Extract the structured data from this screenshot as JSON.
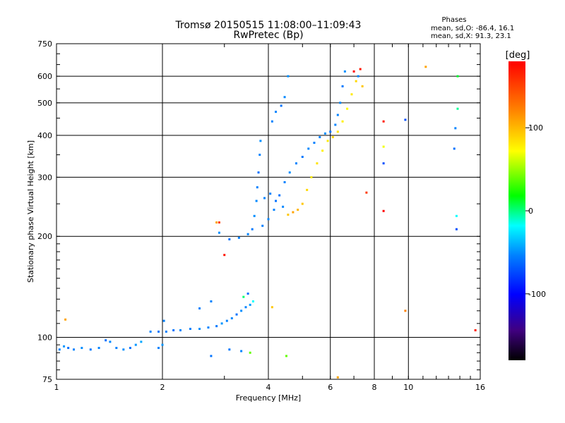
{
  "chart_data": {
    "type": "scatter",
    "title": "Tromsø 20150515 11:08:00–11:09:43",
    "subtitle": "RwPretec (Bp)",
    "xlabel": "Frequency [MHz]",
    "ylabel": "Stationary phase Virtual Height [km]",
    "xscale": "log",
    "yscale": "log",
    "xlim": [
      1,
      16
    ],
    "ylim": [
      75,
      750
    ],
    "x_ticks": [
      1,
      2,
      4,
      6,
      8,
      10,
      16
    ],
    "x_tick_labels": [
      "1",
      "2",
      "4",
      "6",
      "8",
      "10",
      "16"
    ],
    "y_ticks": [
      75,
      100,
      200,
      300,
      400,
      500,
      600,
      750
    ],
    "y_tick_labels": [
      "75",
      "100",
      "200",
      "300",
      "400",
      "500",
      "600",
      "750"
    ],
    "grid": true,
    "stats": {
      "header": "Phases",
      "o_line": "mean, sd,O: -86.4, 16.1",
      "x_line": "mean, sd,X: 91.3, 23.1"
    },
    "colorbar": {
      "label": "[deg]",
      "ticks": [
        100,
        0,
        -100
      ],
      "tick_labels": [
        "100",
        "0",
        "-100"
      ],
      "range": [
        -180,
        180
      ]
    },
    "points": [
      {
        "x": 1.02,
        "y": 92,
        "phase": -95
      },
      {
        "x": 1.05,
        "y": 94,
        "phase": -90
      },
      {
        "x": 1.08,
        "y": 93,
        "phase": -100
      },
      {
        "x": 1.12,
        "y": 92,
        "phase": -95
      },
      {
        "x": 1.18,
        "y": 93,
        "phase": -92
      },
      {
        "x": 1.25,
        "y": 92,
        "phase": -98
      },
      {
        "x": 1.32,
        "y": 93,
        "phase": -95
      },
      {
        "x": 1.38,
        "y": 98,
        "phase": -100
      },
      {
        "x": 1.42,
        "y": 97,
        "phase": -94
      },
      {
        "x": 1.48,
        "y": 93,
        "phase": -96
      },
      {
        "x": 1.55,
        "y": 92,
        "phase": -92
      },
      {
        "x": 1.62,
        "y": 93,
        "phase": -100
      },
      {
        "x": 1.68,
        "y": 95,
        "phase": -90
      },
      {
        "x": 1.74,
        "y": 97,
        "phase": -85
      },
      {
        "x": 1.06,
        "y": 113,
        "phase": 110
      },
      {
        "x": 1.85,
        "y": 104,
        "phase": -95
      },
      {
        "x": 1.95,
        "y": 104,
        "phase": -98
      },
      {
        "x": 2.05,
        "y": 104,
        "phase": -96
      },
      {
        "x": 2.15,
        "y": 105,
        "phase": -100
      },
      {
        "x": 2.25,
        "y": 105,
        "phase": -94
      },
      {
        "x": 2.4,
        "y": 106,
        "phase": -96
      },
      {
        "x": 2.55,
        "y": 106,
        "phase": -92
      },
      {
        "x": 2.7,
        "y": 107,
        "phase": -95
      },
      {
        "x": 2.85,
        "y": 108,
        "phase": -98
      },
      {
        "x": 2.95,
        "y": 110,
        "phase": -90
      },
      {
        "x": 3.05,
        "y": 112,
        "phase": -96
      },
      {
        "x": 3.15,
        "y": 114,
        "phase": -94
      },
      {
        "x": 3.25,
        "y": 117,
        "phase": -100
      },
      {
        "x": 3.35,
        "y": 120,
        "phase": -92
      },
      {
        "x": 3.45,
        "y": 123,
        "phase": -95
      },
      {
        "x": 3.55,
        "y": 125,
        "phase": -88
      },
      {
        "x": 3.62,
        "y": 128,
        "phase": -60
      },
      {
        "x": 3.4,
        "y": 132,
        "phase": -20
      },
      {
        "x": 3.5,
        "y": 135,
        "phase": -100
      },
      {
        "x": 2.55,
        "y": 122,
        "phase": -96
      },
      {
        "x": 2.75,
        "y": 128,
        "phase": -95
      },
      {
        "x": 2.02,
        "y": 112,
        "phase": -96
      },
      {
        "x": 1.95,
        "y": 93,
        "phase": -95
      },
      {
        "x": 2.0,
        "y": 95,
        "phase": -90
      },
      {
        "x": 3.1,
        "y": 92,
        "phase": -98
      },
      {
        "x": 3.35,
        "y": 91,
        "phase": -95
      },
      {
        "x": 3.55,
        "y": 90,
        "phase": 40
      },
      {
        "x": 2.75,
        "y": 88,
        "phase": -100
      },
      {
        "x": 4.5,
        "y": 88,
        "phase": 40
      },
      {
        "x": 4.1,
        "y": 123,
        "phase": 100
      },
      {
        "x": 2.9,
        "y": 205,
        "phase": -92
      },
      {
        "x": 2.85,
        "y": 220,
        "phase": 110
      },
      {
        "x": 3.0,
        "y": 176,
        "phase": 150
      },
      {
        "x": 3.1,
        "y": 196,
        "phase": -100
      },
      {
        "x": 3.3,
        "y": 198,
        "phase": -96
      },
      {
        "x": 3.5,
        "y": 203,
        "phase": -95
      },
      {
        "x": 3.6,
        "y": 210,
        "phase": -98
      },
      {
        "x": 3.65,
        "y": 230,
        "phase": -92
      },
      {
        "x": 3.7,
        "y": 255,
        "phase": -94
      },
      {
        "x": 3.72,
        "y": 280,
        "phase": -96
      },
      {
        "x": 3.75,
        "y": 310,
        "phase": -100
      },
      {
        "x": 3.78,
        "y": 350,
        "phase": -95
      },
      {
        "x": 3.8,
        "y": 385,
        "phase": -92
      },
      {
        "x": 3.85,
        "y": 215,
        "phase": -96
      },
      {
        "x": 4.0,
        "y": 225,
        "phase": -94
      },
      {
        "x": 4.15,
        "y": 240,
        "phase": -95
      },
      {
        "x": 4.3,
        "y": 265,
        "phase": -100
      },
      {
        "x": 4.45,
        "y": 290,
        "phase": -96
      },
      {
        "x": 4.6,
        "y": 310,
        "phase": -92
      },
      {
        "x": 4.8,
        "y": 330,
        "phase": -95
      },
      {
        "x": 5.0,
        "y": 345,
        "phase": -98
      },
      {
        "x": 5.2,
        "y": 365,
        "phase": -94
      },
      {
        "x": 5.4,
        "y": 380,
        "phase": -96
      },
      {
        "x": 5.6,
        "y": 395,
        "phase": -95
      },
      {
        "x": 5.8,
        "y": 405,
        "phase": -92
      },
      {
        "x": 6.0,
        "y": 410,
        "phase": -100
      },
      {
        "x": 6.2,
        "y": 430,
        "phase": -95
      },
      {
        "x": 6.3,
        "y": 460,
        "phase": -96
      },
      {
        "x": 6.4,
        "y": 500,
        "phase": -94
      },
      {
        "x": 6.5,
        "y": 560,
        "phase": -98
      },
      {
        "x": 6.6,
        "y": 620,
        "phase": -92
      },
      {
        "x": 3.9,
        "y": 260,
        "phase": -95
      },
      {
        "x": 4.05,
        "y": 268,
        "phase": -96
      },
      {
        "x": 4.2,
        "y": 255,
        "phase": -100
      },
      {
        "x": 4.4,
        "y": 245,
        "phase": -94
      },
      {
        "x": 4.55,
        "y": 232,
        "phase": 100
      },
      {
        "x": 4.7,
        "y": 236,
        "phase": 110
      },
      {
        "x": 4.85,
        "y": 240,
        "phase": 105
      },
      {
        "x": 5.0,
        "y": 250,
        "phase": 100
      },
      {
        "x": 5.15,
        "y": 275,
        "phase": 95
      },
      {
        "x": 5.3,
        "y": 300,
        "phase": 90
      },
      {
        "x": 5.5,
        "y": 330,
        "phase": 92
      },
      {
        "x": 5.7,
        "y": 360,
        "phase": 88
      },
      {
        "x": 5.9,
        "y": 385,
        "phase": 90
      },
      {
        "x": 6.1,
        "y": 395,
        "phase": 95
      },
      {
        "x": 6.3,
        "y": 410,
        "phase": 92
      },
      {
        "x": 6.5,
        "y": 440,
        "phase": 88
      },
      {
        "x": 6.7,
        "y": 480,
        "phase": 85
      },
      {
        "x": 6.9,
        "y": 530,
        "phase": 90
      },
      {
        "x": 7.1,
        "y": 580,
        "phase": 95
      },
      {
        "x": 7.3,
        "y": 630,
        "phase": 150
      },
      {
        "x": 7.2,
        "y": 600,
        "phase": -95
      },
      {
        "x": 7.0,
        "y": 620,
        "phase": 170
      },
      {
        "x": 7.4,
        "y": 560,
        "phase": 100
      },
      {
        "x": 4.1,
        "y": 440,
        "phase": -96
      },
      {
        "x": 4.2,
        "y": 470,
        "phase": -95
      },
      {
        "x": 4.35,
        "y": 490,
        "phase": -100
      },
      {
        "x": 4.45,
        "y": 520,
        "phase": -94
      },
      {
        "x": 4.55,
        "y": 600,
        "phase": -92
      },
      {
        "x": 7.6,
        "y": 270,
        "phase": 140
      },
      {
        "x": 8.5,
        "y": 440,
        "phase": 150
      },
      {
        "x": 8.5,
        "y": 370,
        "phase": 80
      },
      {
        "x": 8.5,
        "y": 330,
        "phase": -110
      },
      {
        "x": 8.5,
        "y": 238,
        "phase": 160
      },
      {
        "x": 9.8,
        "y": 445,
        "phase": -110
      },
      {
        "x": 9.8,
        "y": 120,
        "phase": 120
      },
      {
        "x": 11.2,
        "y": 640,
        "phase": 110
      },
      {
        "x": 13.8,
        "y": 600,
        "phase": 0
      },
      {
        "x": 13.8,
        "y": 480,
        "phase": -30
      },
      {
        "x": 13.6,
        "y": 420,
        "phase": -95
      },
      {
        "x": 13.5,
        "y": 365,
        "phase": -100
      },
      {
        "x": 13.7,
        "y": 230,
        "phase": -60
      },
      {
        "x": 13.7,
        "y": 210,
        "phase": -110
      },
      {
        "x": 15.5,
        "y": 105,
        "phase": 150
      },
      {
        "x": 6.3,
        "y": 76,
        "phase": 110
      },
      {
        "x": 2.9,
        "y": 220,
        "phase": 140
      }
    ]
  }
}
